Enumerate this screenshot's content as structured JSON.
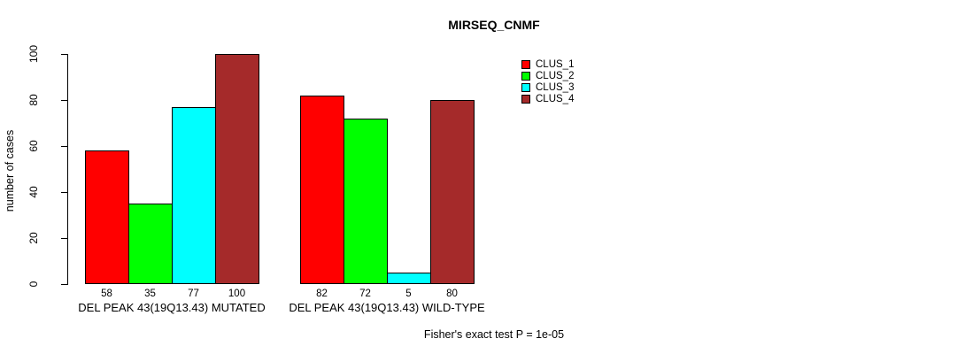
{
  "chart_data": {
    "type": "bar",
    "title": "MIRSEQ_CNMF",
    "ylabel": "number of cases",
    "ylim": [
      0,
      100
    ],
    "yticks": [
      0,
      20,
      40,
      60,
      80,
      100
    ],
    "grid": false,
    "legend_position": "top-right",
    "series": [
      {
        "name": "CLUS_1",
        "color": "#FF0000"
      },
      {
        "name": "CLUS_2",
        "color": "#00FF00"
      },
      {
        "name": "CLUS_3",
        "color": "#00FFFF"
      },
      {
        "name": "CLUS_4",
        "color": "#A52A2A"
      }
    ],
    "groups": [
      {
        "label": "DEL PEAK 43(19Q13.43) MUTATED",
        "values": [
          58,
          35,
          77,
          100
        ]
      },
      {
        "label": "DEL PEAK 43(19Q13.43) WILD-TYPE",
        "values": [
          82,
          72,
          5,
          80
        ]
      }
    ],
    "bar_value_labels_shown": true,
    "footnote": "Fisher's exact test P = 1e-05"
  },
  "colors": {
    "background": "#FFFFFF",
    "axis": "#000000",
    "text": "#000000"
  }
}
